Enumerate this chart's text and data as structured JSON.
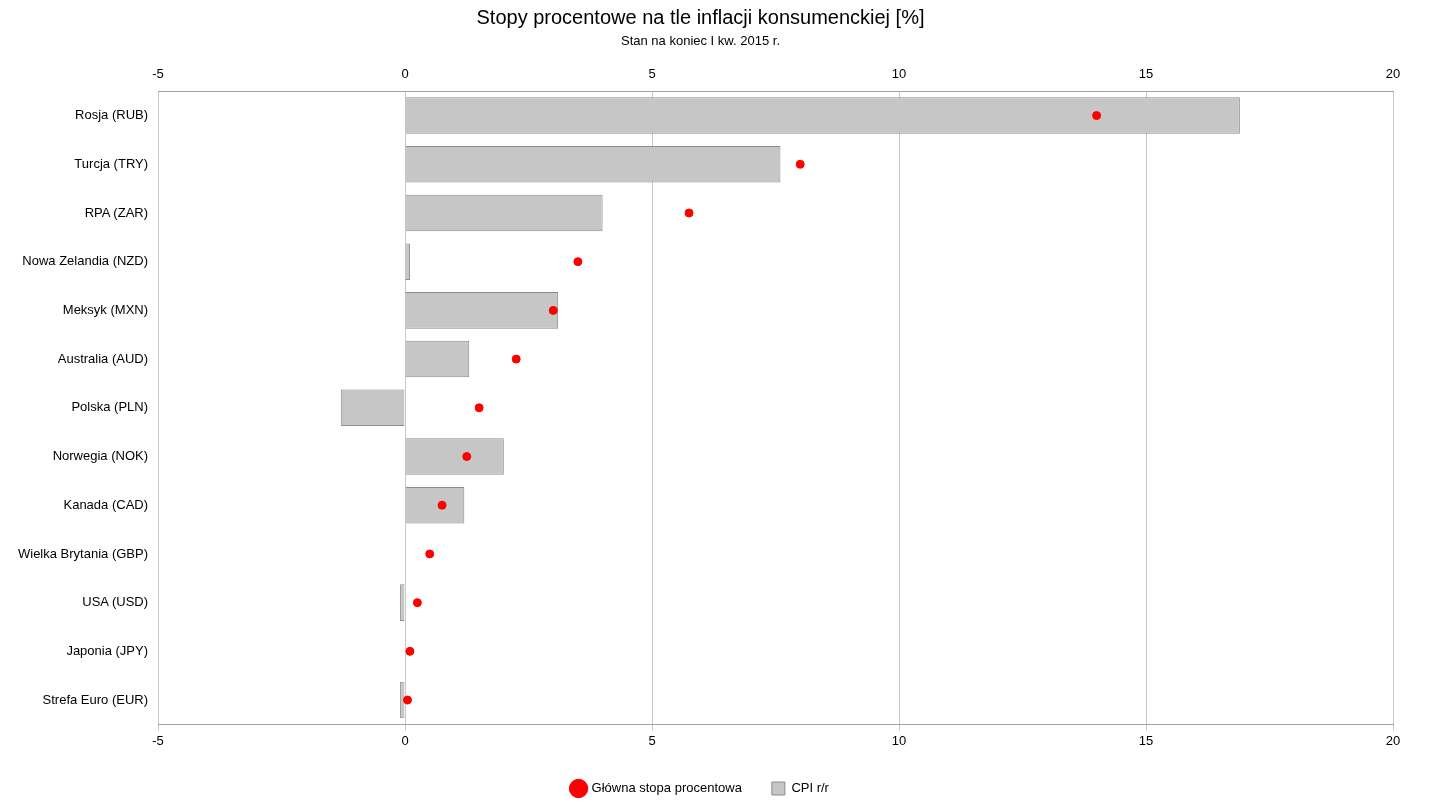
{
  "chart_data": {
    "type": "bar",
    "orientation": "horizontal",
    "title": "Stopy procentowe na tle inflacji konsumenckiej [%]",
    "subtitle": "Stan na koniec I kw. 2015 r.",
    "categories": [
      "Rosja (RUB)",
      "Turcja (TRY)",
      "RPA (ZAR)",
      "Nowa Zelandia (NZD)",
      "Meksyk (MXN)",
      "Australia (AUD)",
      "Polska (PLN)",
      "Norwegia (NOK)",
      "Kanada (CAD)",
      "Wielka Brytania (GBP)",
      "USA (USD)",
      "Japonia (JPY)",
      "Strefa Euro (EUR)"
    ],
    "series": [
      {
        "name": "Główna stopa procentowa",
        "type": "scatter",
        "color": "#ff0000",
        "values": [
          14.0,
          8.0,
          5.75,
          3.5,
          3.0,
          2.25,
          1.5,
          1.25,
          0.75,
          0.5,
          0.25,
          0.1,
          0.05
        ]
      },
      {
        "name": "CPI r/r",
        "type": "bar",
        "color": "#c6c6c6",
        "values": [
          16.9,
          7.6,
          4.0,
          0.1,
          3.1,
          1.3,
          -1.3,
          2.0,
          1.2,
          0.0,
          -0.1,
          0.0,
          -0.1
        ]
      }
    ],
    "xlim": [
      -5,
      20
    ],
    "xticks": [
      -5,
      0,
      5,
      10,
      15,
      20
    ],
    "x2lim": [
      -5,
      20
    ],
    "x2ticks": [
      -5,
      0,
      5,
      10,
      15,
      20
    ],
    "grid": "x",
    "legend": "bottom",
    "marker": "circle"
  }
}
